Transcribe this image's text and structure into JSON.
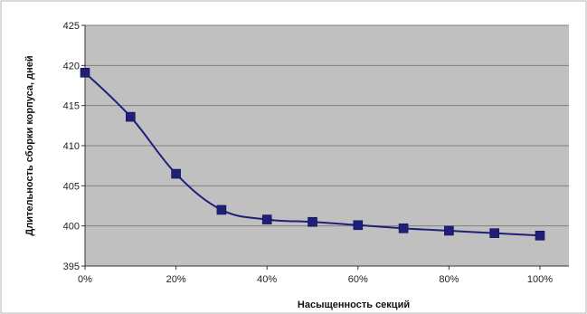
{
  "chart_data": {
    "type": "line",
    "title": "",
    "xlabel": "Насыщенность секций",
    "ylabel": "Длительность сборки корпуса, дней",
    "x": [
      "0%",
      "10%",
      "20%",
      "30%",
      "40%",
      "50%",
      "60%",
      "70%",
      "80%",
      "90%",
      "100%"
    ],
    "x_tick_labels": [
      "0%",
      "20%",
      "40%",
      "60%",
      "80%",
      "100%"
    ],
    "y_tick_labels": [
      "395",
      "400",
      "405",
      "410",
      "415",
      "420",
      "425"
    ],
    "ylim": [
      395,
      425
    ],
    "grid": true,
    "legend": "none",
    "series": [
      {
        "name": "",
        "values": [
          419.1,
          413.6,
          406.5,
          402.0,
          400.8,
          400.5,
          400.1,
          399.7,
          399.4,
          399.1,
          398.8
        ]
      }
    ],
    "colors": {
      "plot_background": "#c0c0c0",
      "gridline": "#808080",
      "series": "#1f1f7a",
      "chart_border": "#b5b5b5"
    }
  }
}
